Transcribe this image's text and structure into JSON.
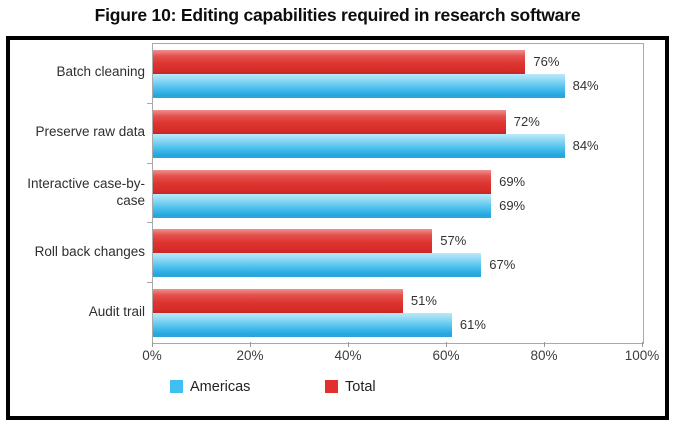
{
  "chart_data": {
    "type": "bar",
    "orientation": "horizontal",
    "title": "Figure 10: Editing capabilities required in research software",
    "categories": [
      "Batch cleaning",
      "Preserve raw data",
      "Interactive case-by-case",
      "Roll back changes",
      "Audit trail"
    ],
    "series": [
      {
        "name": "Americas",
        "color": "#3FC0F0",
        "values": [
          84,
          84,
          69,
          67,
          61
        ]
      },
      {
        "name": "Total",
        "color": "#E2312D",
        "values": [
          76,
          72,
          69,
          57,
          51
        ]
      }
    ],
    "bar_order_top_to_bottom": [
      "Total",
      "Americas"
    ],
    "value_suffix": "%",
    "xlim": [
      0,
      100
    ],
    "x_tick_labels": [
      "0%",
      "20%",
      "40%",
      "60%",
      "80%",
      "100%"
    ],
    "grid": false,
    "legend_position": "bottom",
    "legend_order": [
      "Americas",
      "Total"
    ]
  }
}
